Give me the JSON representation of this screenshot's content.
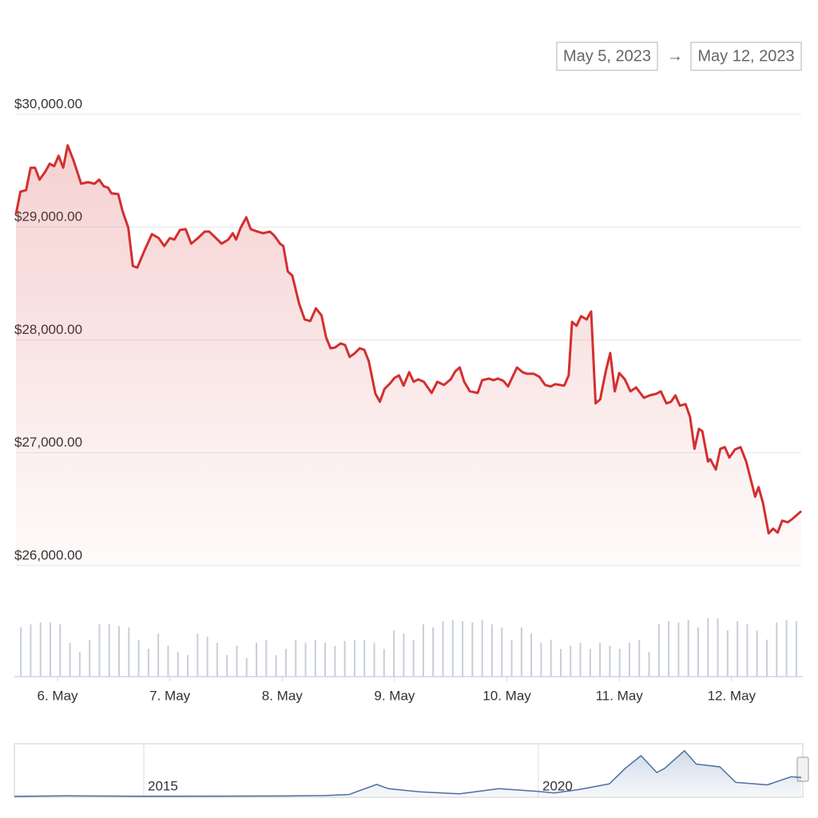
{
  "date_range": {
    "from": "May 5, 2023",
    "separator": "→",
    "to": "May 12, 2023"
  },
  "chart_data": [
    {
      "type": "area",
      "color": "#d32f2f",
      "grid": true,
      "ylim": [
        26000,
        30000
      ],
      "yticks": [
        {
          "value": 30000,
          "label": "$30,000.00"
        },
        {
          "value": 29000,
          "label": "$29,000.00"
        },
        {
          "value": 28000,
          "label": "$28,000.00"
        },
        {
          "value": 27000,
          "label": "$27,000.00"
        },
        {
          "value": 26000,
          "label": "$26,000.00"
        }
      ],
      "xlim": [
        5.63,
        12.62
      ],
      "xticks": [
        {
          "value": 6,
          "label": "6. May"
        },
        {
          "value": 7,
          "label": "7. May"
        },
        {
          "value": 8,
          "label": "8. May"
        },
        {
          "value": 9,
          "label": "9. May"
        },
        {
          "value": 10,
          "label": "10. May"
        },
        {
          "value": 11,
          "label": "11. May"
        },
        {
          "value": 12,
          "label": "12. May"
        }
      ],
      "x": [
        5.63,
        5.67,
        5.72,
        5.76,
        5.8,
        5.84,
        5.89,
        5.93,
        5.97,
        6.01,
        6.05,
        6.09,
        6.14,
        6.21,
        6.27,
        6.33,
        6.37,
        6.41,
        6.45,
        6.48,
        6.54,
        6.58,
        6.63,
        6.67,
        6.71,
        6.77,
        6.84,
        6.9,
        6.95,
        7.0,
        7.04,
        7.09,
        7.14,
        7.19,
        7.25,
        7.31,
        7.35,
        7.41,
        7.46,
        7.52,
        7.56,
        7.59,
        7.63,
        7.68,
        7.72,
        7.78,
        7.83,
        7.89,
        7.93,
        7.98,
        8.01,
        8.05,
        8.09,
        8.15,
        8.2,
        8.25,
        8.3,
        8.35,
        8.39,
        8.43,
        8.47,
        8.52,
        8.56,
        8.6,
        8.64,
        8.69,
        8.73,
        8.77,
        8.83,
        8.87,
        8.91,
        8.96,
        9.0,
        9.04,
        9.08,
        9.13,
        9.17,
        9.21,
        9.26,
        9.33,
        9.38,
        9.44,
        9.5,
        9.54,
        9.58,
        9.62,
        9.67,
        9.74,
        9.78,
        9.84,
        9.88,
        9.92,
        9.97,
        10.01,
        10.05,
        10.09,
        10.14,
        10.18,
        10.24,
        10.29,
        10.34,
        10.39,
        10.43,
        10.51,
        10.55,
        10.58,
        10.62,
        10.66,
        10.71,
        10.75,
        10.79,
        10.83,
        10.88,
        10.92,
        10.96,
        11.0,
        11.05,
        11.1,
        11.15,
        11.22,
        11.27,
        11.33,
        11.37,
        11.42,
        11.46,
        11.5,
        11.54,
        11.59,
        11.63,
        11.67,
        11.71,
        11.74,
        11.79,
        11.81,
        11.86,
        11.9,
        11.94,
        11.98,
        12.03,
        12.08,
        12.13,
        12.17,
        12.21,
        12.24,
        12.28,
        12.33,
        12.37,
        12.41,
        12.45,
        12.5,
        12.54,
        12.58,
        12.62
      ],
      "values": [
        29115,
        29314,
        29328,
        29526,
        29526,
        29420,
        29490,
        29561,
        29540,
        29632,
        29526,
        29724,
        29597,
        29384,
        29398,
        29384,
        29420,
        29363,
        29349,
        29299,
        29292,
        29137,
        28995,
        28655,
        28641,
        28783,
        28938,
        28903,
        28832,
        28903,
        28889,
        28974,
        28981,
        28853,
        28903,
        28960,
        28960,
        28903,
        28853,
        28889,
        28945,
        28889,
        28995,
        29087,
        28981,
        28960,
        28945,
        28960,
        28924,
        28853,
        28832,
        28606,
        28570,
        28323,
        28181,
        28167,
        28280,
        28217,
        28025,
        27926,
        27933,
        27969,
        27955,
        27849,
        27877,
        27926,
        27912,
        27813,
        27523,
        27452,
        27565,
        27615,
        27664,
        27686,
        27594,
        27714,
        27629,
        27650,
        27629,
        27530,
        27629,
        27601,
        27650,
        27721,
        27756,
        27629,
        27545,
        27530,
        27643,
        27657,
        27643,
        27657,
        27636,
        27587,
        27672,
        27756,
        27714,
        27700,
        27700,
        27672,
        27601,
        27587,
        27608,
        27594,
        27686,
        28160,
        28125,
        28210,
        28181,
        28252,
        27438,
        27473,
        27721,
        27884,
        27544,
        27707,
        27650,
        27544,
        27579,
        27487,
        27508,
        27523,
        27544,
        27438,
        27452,
        27508,
        27417,
        27431,
        27318,
        27035,
        27212,
        27191,
        26922,
        26943,
        26851,
        27035,
        27049,
        26957,
        27028,
        27049,
        26922,
        26766,
        26610,
        26695,
        26553,
        26285,
        26327,
        26292,
        26398,
        26384,
        26412,
        26447,
        26483
      ]
    },
    {
      "type": "bar",
      "color": "#c8ced6",
      "ylim": [
        0,
        100
      ],
      "categories": [
        null,
        null,
        null,
        null,
        null,
        null,
        null,
        null,
        null,
        null,
        null,
        null,
        null,
        null,
        null,
        null,
        null,
        null,
        null,
        null,
        null,
        null,
        null,
        null,
        null,
        null,
        null,
        null,
        null,
        null,
        null,
        null,
        null,
        null,
        null,
        null,
        null,
        null,
        null,
        null,
        null,
        null,
        null,
        null,
        null,
        null,
        null,
        null,
        null,
        null,
        null,
        null,
        null,
        null,
        null,
        null,
        null,
        null,
        null,
        null,
        null,
        null,
        null,
        null,
        null,
        null,
        null,
        null,
        null,
        null,
        null,
        null,
        null,
        null,
        null,
        null,
        null,
        null,
        null,
        null
      ],
      "values": [
        80,
        85,
        88,
        88,
        85,
        55,
        40,
        60,
        85,
        85,
        82,
        80,
        60,
        45,
        70,
        50,
        40,
        35,
        70,
        65,
        55,
        35,
        50,
        30,
        55,
        60,
        35,
        45,
        60,
        55,
        60,
        55,
        50,
        58,
        60,
        60,
        55,
        45,
        75,
        70,
        60,
        85,
        80,
        90,
        92,
        90,
        88,
        92,
        85,
        80,
        60,
        80,
        70,
        55,
        60,
        45,
        50,
        55,
        45,
        55,
        50,
        45,
        55,
        60,
        40,
        85,
        90,
        88,
        92,
        80,
        95,
        95,
        75,
        90,
        85,
        75,
        60,
        88,
        92,
        90
      ]
    },
    {
      "type": "area",
      "color": "#4a6fa5",
      "grid": true,
      "xlim": [
        2013.36,
        2023.33
      ],
      "ylim": [
        0,
        75000
      ],
      "xticks": [
        2015,
        2020
      ],
      "x": [
        2013.36,
        2014.0,
        2014.5,
        2015.0,
        2016.0,
        2016.8,
        2017.3,
        2017.6,
        2017.95,
        2018.1,
        2018.5,
        2019.0,
        2019.5,
        2020.0,
        2020.2,
        2020.5,
        2020.9,
        2021.1,
        2021.3,
        2021.5,
        2021.6,
        2021.85,
        2022.0,
        2022.3,
        2022.5,
        2022.9,
        2023.2,
        2023.33
      ],
      "values": [
        120,
        800,
        600,
        250,
        400,
        700,
        1200,
        2700,
        17000,
        11000,
        6500,
        3700,
        11000,
        7200,
        5000,
        9500,
        18000,
        40000,
        58000,
        34000,
        40000,
        65000,
        46000,
        42000,
        20000,
        16500,
        28000,
        27000
      ]
    }
  ]
}
